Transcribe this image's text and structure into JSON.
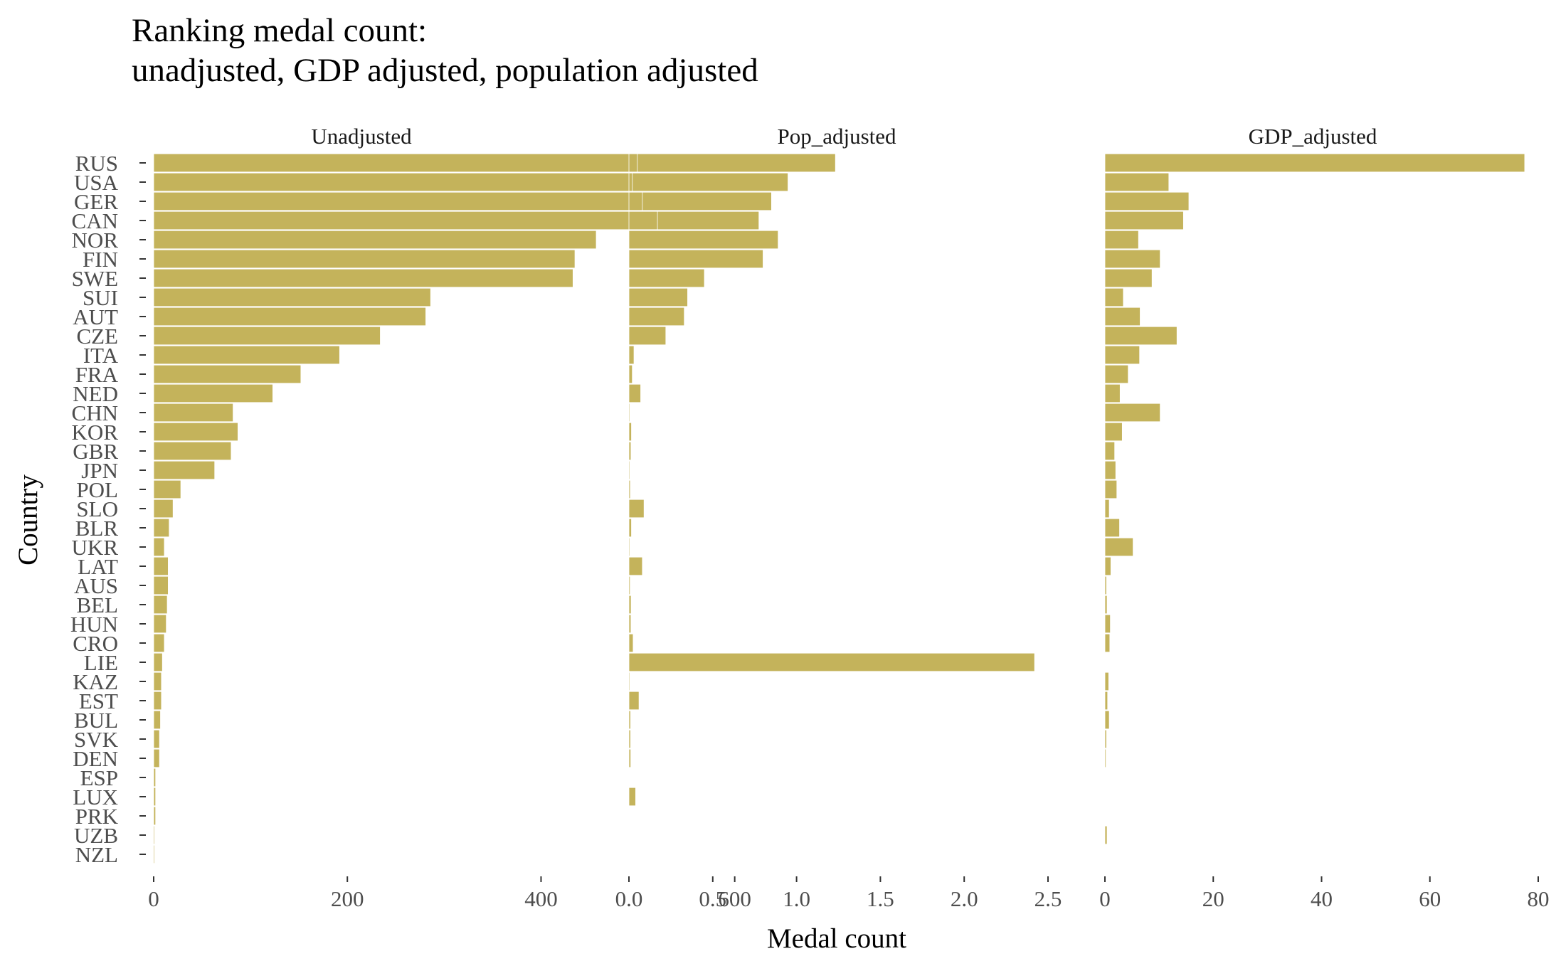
{
  "title_line1": "Ranking medal count:",
  "title_line2": "unadjusted, GDP adjusted, population adjusted",
  "colors": {
    "bar": "#C4B35B",
    "bar_stroke": "#ffffff",
    "tick": "#333333"
  },
  "chart_data": {
    "type": "bar",
    "orientation": "horizontal",
    "title": "Ranking medal count:\nunadjusted, GDP adjusted, population adjusted",
    "xlabel": "Medal count",
    "ylabel": "Country",
    "grid": false,
    "categories": [
      "RUS",
      "USA",
      "GER",
      "CAN",
      "NOR",
      "FIN",
      "SWE",
      "SUI",
      "AUT",
      "CZE",
      "ITA",
      "FRA",
      "NED",
      "CHN",
      "KOR",
      "GBR",
      "JPN",
      "POL",
      "SLO",
      "BLR",
      "UKR",
      "LAT",
      "AUS",
      "BEL",
      "HUN",
      "CRO",
      "LIE",
      "KAZ",
      "EST",
      "BUL",
      "SVK",
      "DEN",
      "ESP",
      "LUX",
      "PRK",
      "UZB",
      "NZL"
    ],
    "panels": [
      {
        "name": "Unadjusted",
        "xlim": [
          0,
          720
        ],
        "ticks": [
          0,
          200,
          400,
          600
        ],
        "tick_labels": [
          "0",
          "200",
          "400",
          "600"
        ],
        "values": [
          704,
          655,
          638,
          625,
          457,
          435,
          433,
          286,
          281,
          234,
          192,
          152,
          123,
          82,
          87,
          80,
          63,
          28,
          20,
          16,
          11,
          15,
          15,
          14,
          13,
          11,
          9,
          8,
          8,
          7,
          6,
          6,
          2,
          2,
          2,
          1,
          1
        ]
      },
      {
        "name": "Pop_adjusted",
        "xlim": [
          0,
          2.5
        ],
        "ticks": [
          0,
          0.5,
          1.0,
          1.5,
          2.0,
          2.5
        ],
        "tick_labels": [
          "0.0",
          "0.5",
          "1.0",
          "1.5",
          "2.0",
          "2.5"
        ],
        "values": [
          0.05,
          0.02,
          0.08,
          0.17,
          0.89,
          0.8,
          0.45,
          0.35,
          0.33,
          0.22,
          0.03,
          0.02,
          0.07,
          0.005,
          0.015,
          0.012,
          0.005,
          0.008,
          0.09,
          0.015,
          0.005,
          0.08,
          0.007,
          0.013,
          0.012,
          0.025,
          2.42,
          0.005,
          0.06,
          0.01,
          0.01,
          0.011,
          0.003,
          0.04,
          0.002,
          0.002,
          0.002
        ]
      },
      {
        "name": "GDP_adjusted",
        "xlim": [
          0,
          80
        ],
        "ticks": [
          0,
          20,
          40,
          60,
          80
        ],
        "tick_labels": [
          "0",
          "20",
          "40",
          "60",
          "80"
        ],
        "values": [
          77.5,
          11.8,
          15.5,
          14.5,
          6.2,
          10.2,
          8.7,
          3.4,
          6.5,
          13.3,
          6.4,
          4.3,
          2.8,
          10.2,
          3.2,
          1.8,
          2.0,
          2.2,
          0.8,
          2.7,
          5.2,
          1.1,
          0.3,
          0.4,
          1.0,
          0.9,
          0.0,
          0.7,
          0.5,
          0.8,
          0.3,
          0.2,
          0.1,
          0.0,
          0.0,
          0.4,
          0.1
        ]
      }
    ]
  }
}
